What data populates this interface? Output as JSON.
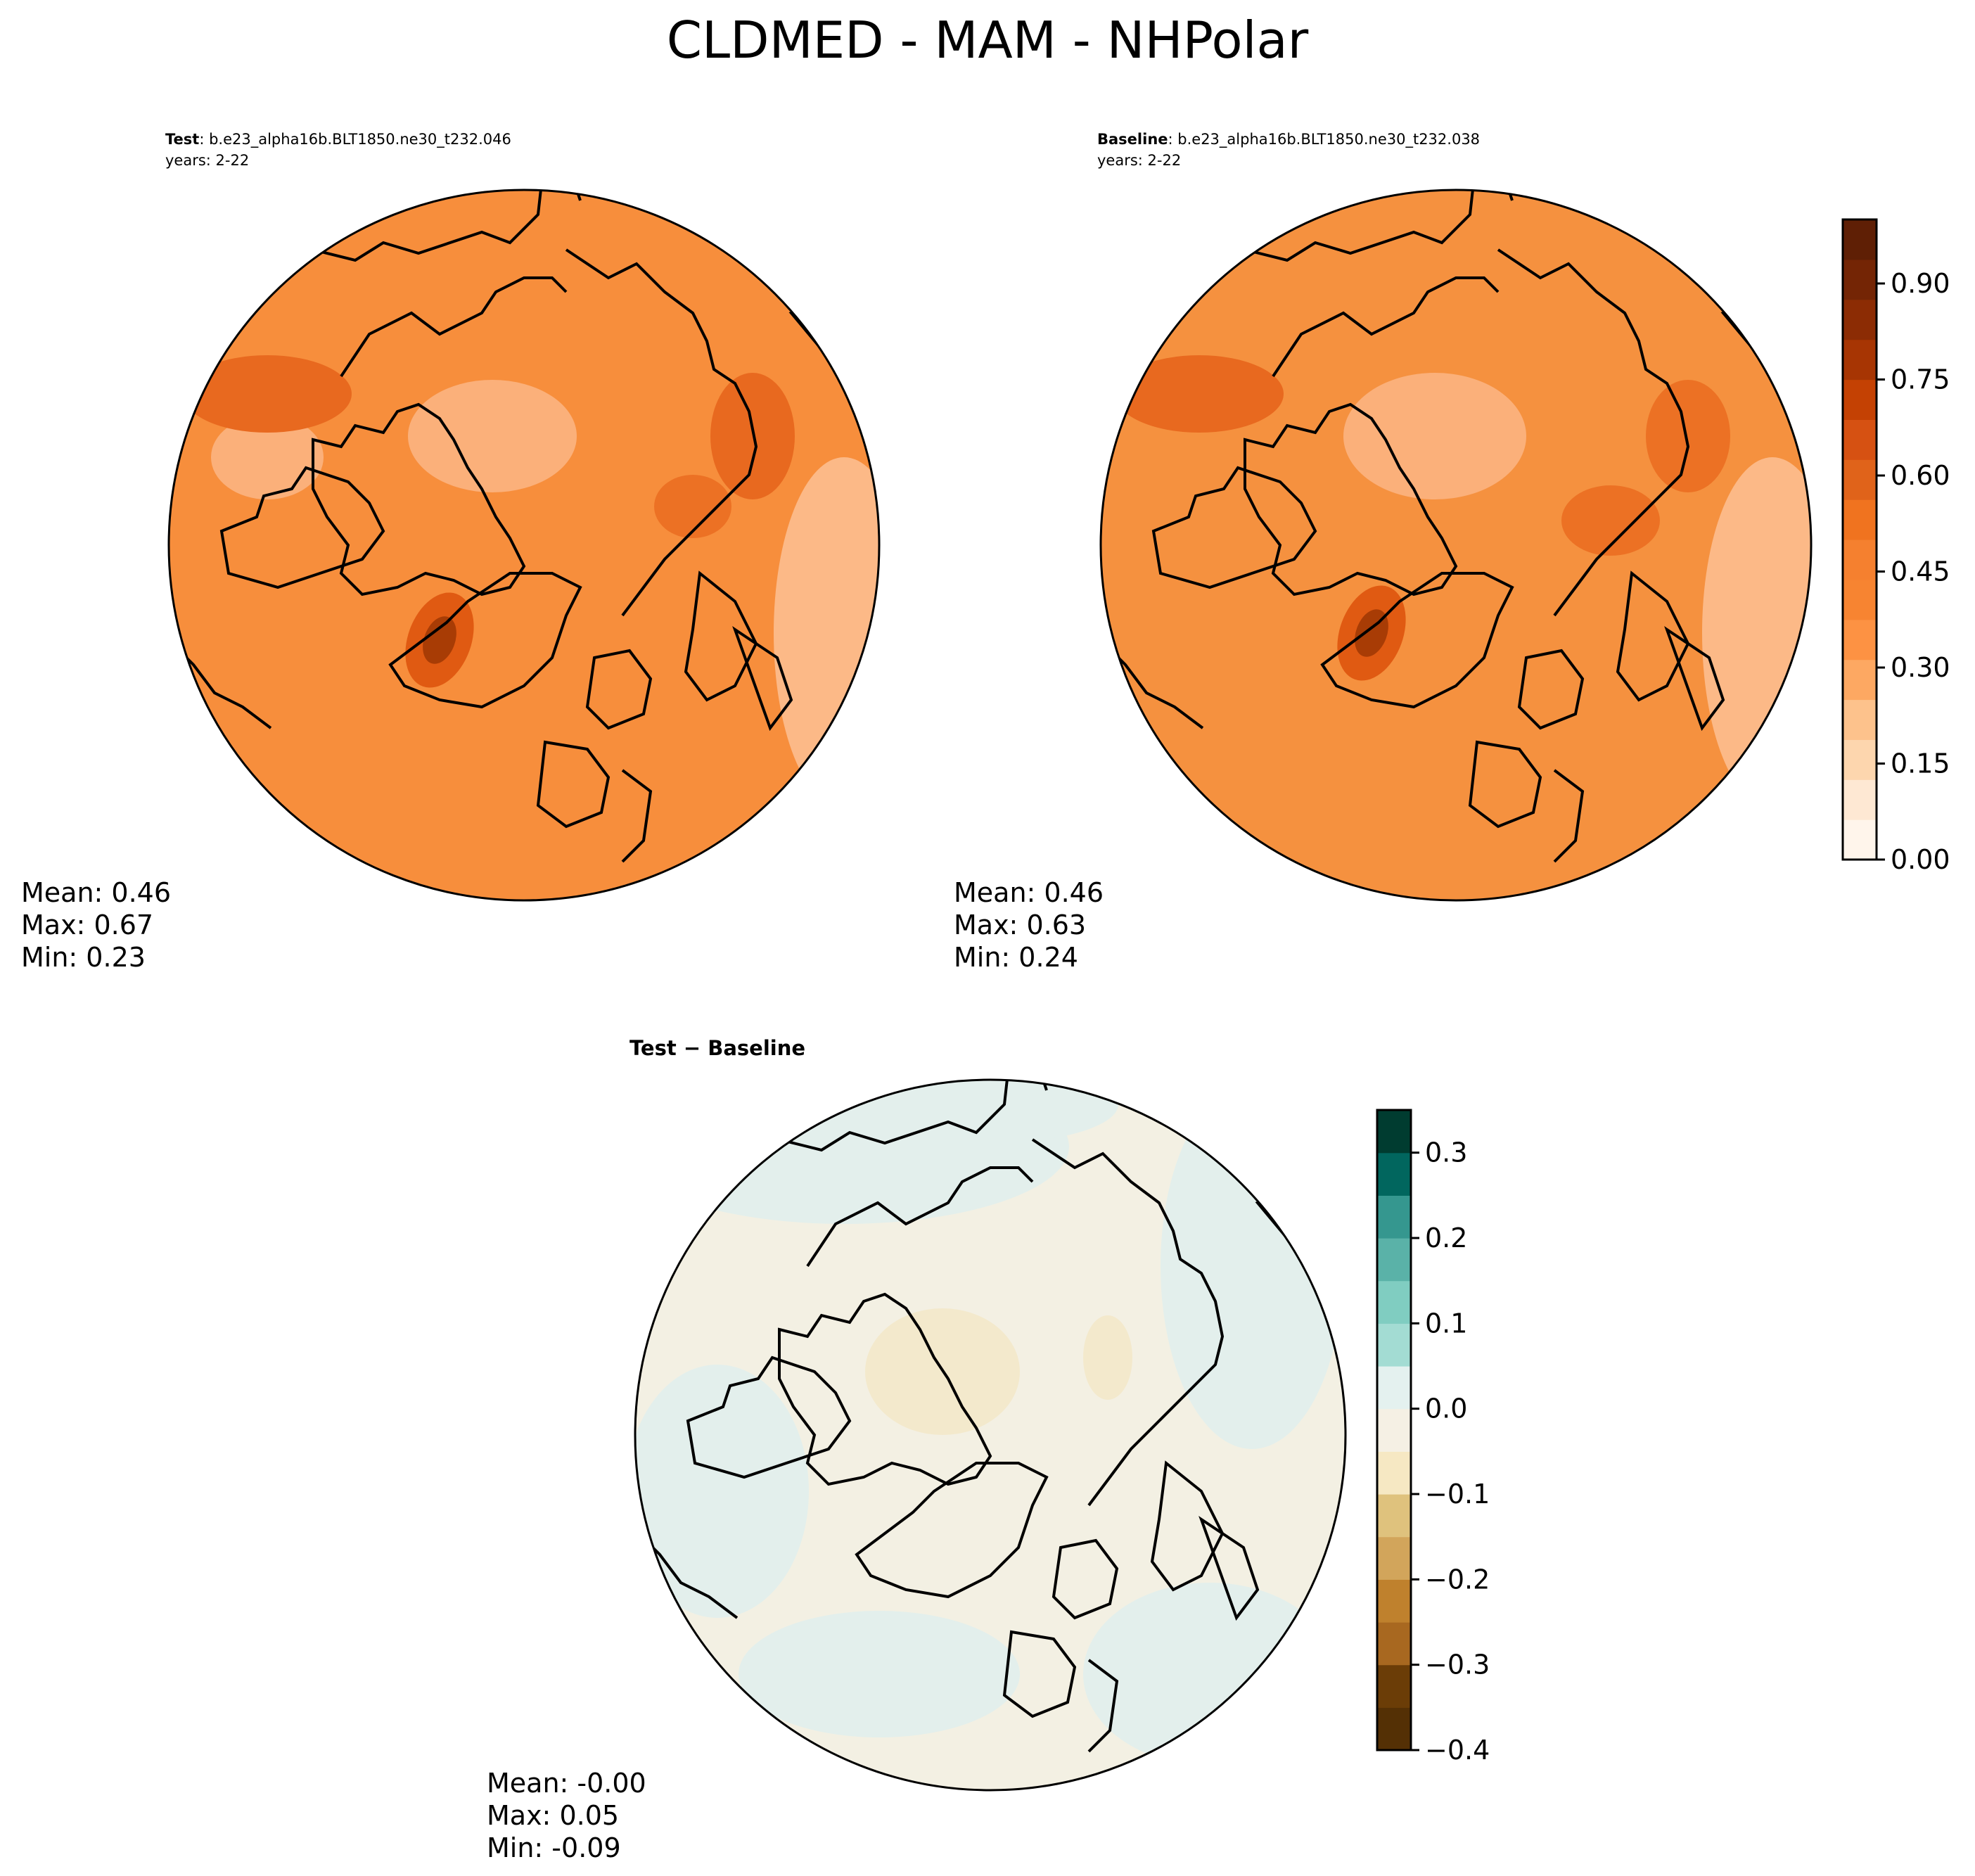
{
  "figure": {
    "title": "CLDMED - MAM - NHPolar"
  },
  "colors": {
    "orange_scale": [
      "#fff5eb",
      "#fee8d3",
      "#fdd6ae",
      "#fdc28c",
      "#fda862",
      "#fd9243",
      "#f78431",
      "#f5802f",
      "#f0731f",
      "#e0631a",
      "#d65112",
      "#c44103",
      "#a73503",
      "#8c2c04",
      "#742505",
      "#5f1f05"
    ],
    "diff_scale": [
      "#543005",
      "#6b3d07",
      "#8c510a",
      "#a86820",
      "#bf812d",
      "#d2a55b",
      "#dfc27d",
      "#ecd99f",
      "#f6e8c3",
      "#f5f0e4",
      "#e4f1ef",
      "#c7eae5",
      "#a3dcd3",
      "#80cdc1",
      "#5ab2a8",
      "#35978f",
      "#1c7e74",
      "#01665e",
      "#003c30"
    ],
    "map_background_test": "#f78e3c",
    "map_background_baseline": "#f5913f",
    "map_background_diff": "#f3f0e3"
  },
  "chart_data": [
    {
      "type": "heatmap",
      "panel": "test",
      "label_bold": "Test",
      "case": ": b.e23_alpha16b.BLT1850.ne30_t232.046",
      "years": "years: 2-22",
      "stats": {
        "mean": "Mean:  0.46",
        "max": "Max:  0.67",
        "min": "Min:  0.23"
      },
      "mean": 0.46,
      "max": 0.67,
      "min": 0.23,
      "projection": "North Polar Stereographic"
    },
    {
      "type": "heatmap",
      "panel": "baseline",
      "label_bold": "Baseline",
      "case": ": b.e23_alpha16b.BLT1850.ne30_t232.038",
      "years": "years: 2-22",
      "stats": {
        "mean": "Mean:  0.46",
        "max": "Max:  0.63",
        "min": "Min:  0.24"
      },
      "mean": 0.46,
      "max": 0.63,
      "min": 0.24,
      "projection": "North Polar Stereographic",
      "colorbar": {
        "range": [
          0.0,
          1.0
        ],
        "levels": 16,
        "ticks": [
          0.0,
          0.15,
          0.3,
          0.45,
          0.6,
          0.75,
          0.9
        ],
        "tick_labels": [
          "0.00",
          "0.15",
          "0.30",
          "0.45",
          "0.60",
          "0.75",
          "0.90"
        ]
      }
    },
    {
      "type": "heatmap",
      "panel": "difference",
      "title": "Test − Baseline",
      "stats": {
        "mean": "Mean: -0.00",
        "max": "Max:  0.05",
        "min": "Min: -0.09"
      },
      "mean": -0.0,
      "max": 0.05,
      "min": -0.09,
      "projection": "North Polar Stereographic",
      "colorbar": {
        "range": [
          -0.4,
          0.35
        ],
        "levels": 15,
        "ticks": [
          0.3,
          0.2,
          0.1,
          0.0,
          -0.1,
          -0.2,
          -0.3,
          -0.4
        ],
        "tick_labels": [
          "0.3",
          "0.2",
          "0.1",
          "0.0",
          "−0.1",
          "−0.2",
          "−0.3",
          "−0.4"
        ]
      }
    }
  ]
}
